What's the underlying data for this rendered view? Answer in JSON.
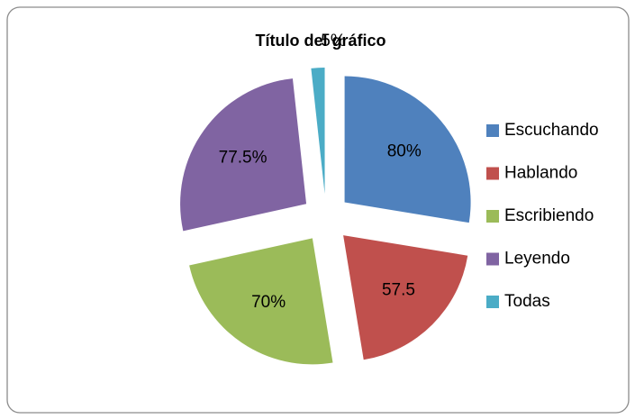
{
  "chart_data": {
    "type": "pie",
    "title": "Título del gráfico",
    "categories": [
      "Escuchando",
      "Hablando",
      "Escribiendo",
      "Leyendo",
      "Todas"
    ],
    "values": [
      80,
      57.5,
      70,
      77.5,
      5
    ],
    "value_labels": [
      "80%",
      "57.5",
      "70%",
      "77.5%",
      "5%"
    ],
    "colors": [
      "#4f81bd",
      "#c0504d",
      "#9bbb59",
      "#8064a2",
      "#4bacc6"
    ],
    "legend": "right"
  }
}
